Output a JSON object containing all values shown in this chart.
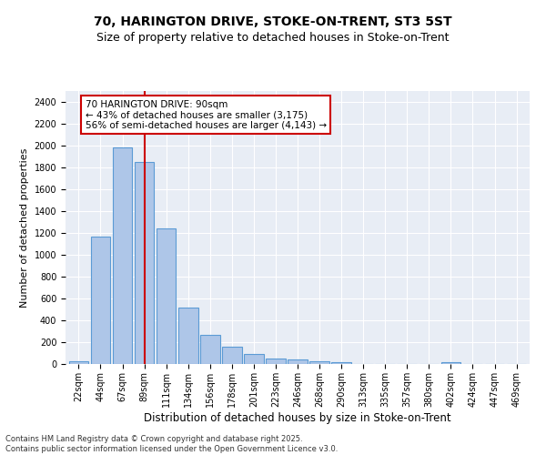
{
  "title_line1": "70, HARINGTON DRIVE, STOKE-ON-TRENT, ST3 5ST",
  "title_line2": "Size of property relative to detached houses in Stoke-on-Trent",
  "xlabel": "Distribution of detached houses by size in Stoke-on-Trent",
  "ylabel": "Number of detached properties",
  "categories": [
    "22sqm",
    "44sqm",
    "67sqm",
    "89sqm",
    "111sqm",
    "134sqm",
    "156sqm",
    "178sqm",
    "201sqm",
    "223sqm",
    "246sqm",
    "268sqm",
    "290sqm",
    "313sqm",
    "335sqm",
    "357sqm",
    "380sqm",
    "402sqm",
    "424sqm",
    "447sqm",
    "469sqm"
  ],
  "values": [
    28,
    1170,
    1980,
    1850,
    1240,
    515,
    270,
    155,
    90,
    50,
    40,
    28,
    20,
    0,
    0,
    0,
    0,
    18,
    0,
    0,
    0
  ],
  "bar_color": "#aec6e8",
  "bar_edge_color": "#5b9bd5",
  "vline_x": 3,
  "vline_color": "#cc0000",
  "annotation_text": "70 HARINGTON DRIVE: 90sqm\n← 43% of detached houses are smaller (3,175)\n56% of semi-detached houses are larger (4,143) →",
  "annotation_box_color": "#cc0000",
  "ylim": [
    0,
    2500
  ],
  "yticks": [
    0,
    200,
    400,
    600,
    800,
    1000,
    1200,
    1400,
    1600,
    1800,
    2000,
    2200,
    2400
  ],
  "background_color": "#e8edf5",
  "footer_text": "Contains HM Land Registry data © Crown copyright and database right 2025.\nContains public sector information licensed under the Open Government Licence v3.0.",
  "title_fontsize": 10,
  "subtitle_fontsize": 9,
  "xlabel_fontsize": 8.5,
  "ylabel_fontsize": 8,
  "tick_fontsize": 7,
  "annotation_fontsize": 7.5,
  "footer_fontsize": 6
}
